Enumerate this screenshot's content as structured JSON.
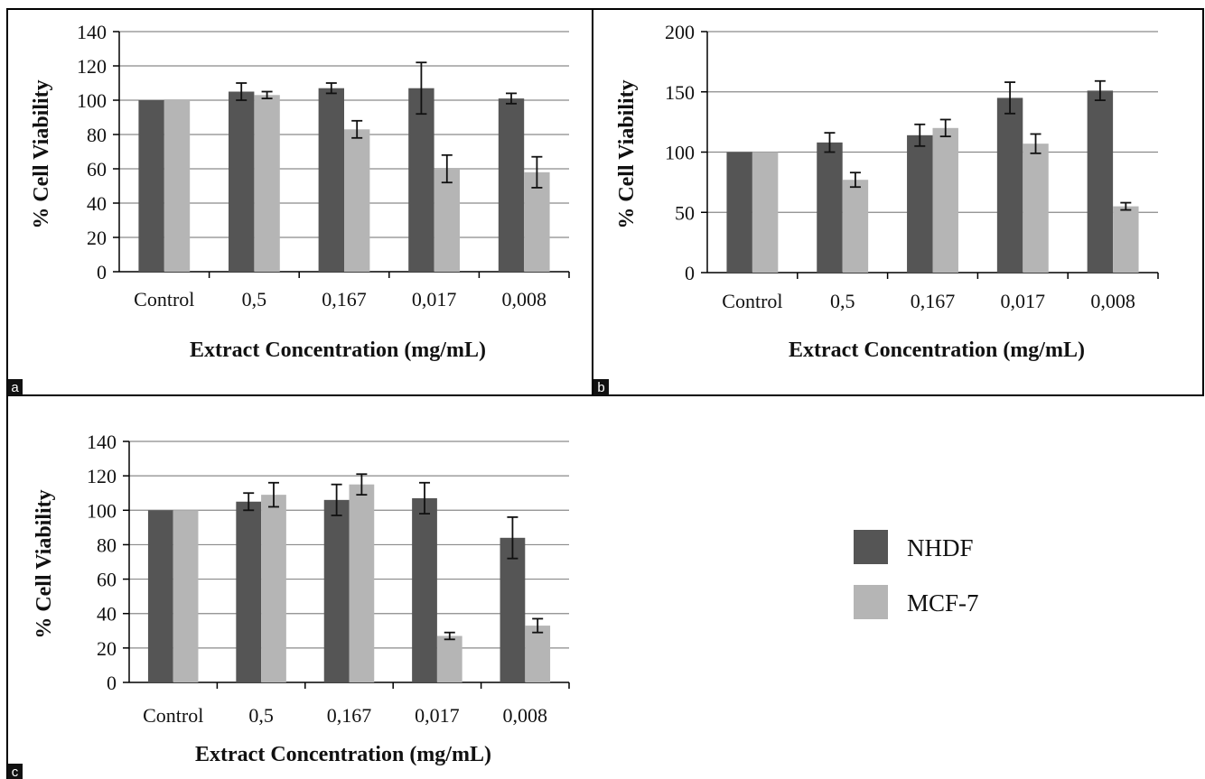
{
  "chart_data": [
    {
      "panel": "a",
      "type": "bar",
      "categories": [
        "Control",
        "0,5",
        "0,167",
        "0,017",
        "0,008"
      ],
      "series": [
        {
          "name": "NHDF",
          "values": [
            100,
            105,
            107,
            107,
            101
          ],
          "errors": [
            0,
            5,
            3,
            15,
            3
          ]
        },
        {
          "name": "MCF-7",
          "values": [
            100,
            103,
            83,
            60,
            58
          ],
          "errors": [
            0,
            2,
            5,
            8,
            9
          ]
        }
      ],
      "xlabel": "Extract Concentration  (mg/mL)",
      "ylabel": "% Cell Viability",
      "ylim": [
        0,
        140
      ],
      "yticks": [
        0,
        20,
        40,
        60,
        80,
        100,
        120,
        140
      ],
      "grid": true
    },
    {
      "panel": "b",
      "type": "bar",
      "categories": [
        "Control",
        "0,5",
        "0,167",
        "0,017",
        "0,008"
      ],
      "series": [
        {
          "name": "NHDF",
          "values": [
            100,
            108,
            114,
            145,
            151
          ],
          "errors": [
            0,
            8,
            9,
            13,
            8
          ]
        },
        {
          "name": "MCF-7",
          "values": [
            100,
            77,
            120,
            107,
            55
          ],
          "errors": [
            0,
            6,
            7,
            8,
            3
          ]
        }
      ],
      "xlabel": "Extract Concentration  (mg/mL)",
      "ylabel": "% Cell Viability",
      "ylim": [
        0,
        200
      ],
      "yticks": [
        0,
        50,
        100,
        150,
        200
      ],
      "grid": true
    },
    {
      "panel": "c",
      "type": "bar",
      "categories": [
        "Control",
        "0,5",
        "0,167",
        "0,017",
        "0,008"
      ],
      "series": [
        {
          "name": "NHDF",
          "values": [
            100,
            105,
            106,
            107,
            84
          ],
          "errors": [
            0,
            5,
            9,
            9,
            12
          ]
        },
        {
          "name": "MCF-7",
          "values": [
            100,
            109,
            115,
            27,
            33
          ],
          "errors": [
            0,
            7,
            6,
            2,
            4
          ]
        }
      ],
      "xlabel": "Extract Concentration  (mg/mL)",
      "ylabel": "% Cell Viability",
      "ylim": [
        0,
        140
      ],
      "yticks": [
        0,
        20,
        40,
        60,
        80,
        100,
        120,
        140
      ],
      "grid": true
    }
  ],
  "legend": {
    "placement": "right of panel c",
    "items": [
      {
        "label": "NHDF",
        "color": "#555555"
      },
      {
        "label": "MCF-7",
        "color": "#b5b5b5"
      }
    ]
  },
  "colors": {
    "nhdf": "#555555",
    "mcf7": "#b5b5b5",
    "grid": "#8a8a8a",
    "frame": "#000000"
  }
}
